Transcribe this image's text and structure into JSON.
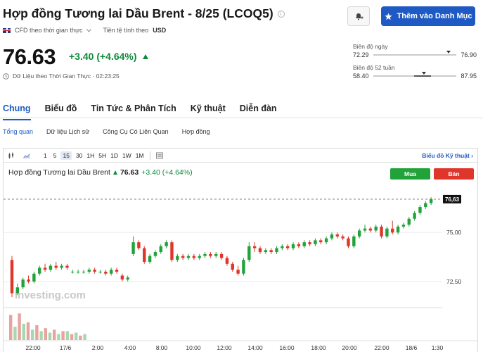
{
  "header": {
    "title": "Hợp đồng Tương lai Dầu Brent - 8/25 (LCOQ5)",
    "watchlist_label": "Thêm vào Danh Mục"
  },
  "meta": {
    "cfd_label": "CFD theo thời gian thực",
    "currency_label": "Tiền tệ tính theo",
    "currency": "USD"
  },
  "quote": {
    "price": "76.63",
    "change": "+3.40 (+4.64%)",
    "status": "Dữ Liệu theo Thời Gian Thực · 02:23:25",
    "change_color": "#0e8a3c"
  },
  "ranges": {
    "day": {
      "label": "Biên độ ngày",
      "low": "72.29",
      "high": "76.90",
      "position": 0.9
    },
    "week52": {
      "label": "Biên độ 52 tuần",
      "low": "58.40",
      "high": "87.95",
      "position": 0.61
    }
  },
  "tabs": [
    "Chung",
    "Biểu đồ",
    "Tin Tức & Phân Tích",
    "Kỹ thuật",
    "Diễn đàn"
  ],
  "subtabs": [
    "Tổng quan",
    "Dữ liệu Lịch sử",
    "Công Cụ Có Liên Quan",
    "Hợp đồng"
  ],
  "toolbar": {
    "intervals": [
      "1",
      "5",
      "15",
      "30",
      "1H",
      "5H",
      "1D",
      "1W",
      "1M"
    ],
    "selected_interval": "15",
    "advanced_chart": "Biểu đồ Kỹ thuật"
  },
  "chart_header": {
    "name": "Hợp đồng Tương lai Dầu Brent",
    "price": "76.63",
    "change": "+3.40 (+4.64%)",
    "buy_label": "Mua",
    "sell_label": "Bán"
  },
  "watermark": "Investing.com",
  "colors": {
    "accent": "#1f5ac4",
    "up": "#22a33a",
    "down": "#e0352b"
  },
  "chart_data": {
    "type": "candlestick",
    "x_ticks": [
      "22:00",
      "17/6",
      "2:00",
      "4:00",
      "8:00",
      "10:00",
      "12:00",
      "14:00",
      "16:00",
      "18:00",
      "20:00",
      "22:00",
      "18/6",
      "1:30"
    ],
    "y_ticks": [
      "75,00",
      "72,50"
    ],
    "last_price_label": "76,63",
    "ylim": [
      71.2,
      77.2
    ],
    "series": [
      {
        "t": 0,
        "o": 73.6,
        "c": 71.9,
        "h": 73.8,
        "l": 71.7
      },
      {
        "t": 1,
        "o": 71.9,
        "c": 72.2,
        "h": 72.4,
        "l": 71.8
      },
      {
        "t": 2,
        "o": 72.2,
        "c": 72.6,
        "h": 72.7,
        "l": 72.1
      },
      {
        "t": 3,
        "o": 72.6,
        "c": 72.5,
        "h": 72.8,
        "l": 72.4
      },
      {
        "t": 4,
        "o": 72.5,
        "c": 72.9,
        "h": 73.0,
        "l": 72.4
      },
      {
        "t": 5,
        "o": 72.9,
        "c": 73.2,
        "h": 73.3,
        "l": 72.8
      },
      {
        "t": 6,
        "o": 73.2,
        "c": 73.1,
        "h": 73.4,
        "l": 73.0
      },
      {
        "t": 7,
        "o": 73.1,
        "c": 73.3,
        "h": 73.4,
        "l": 73.0
      },
      {
        "t": 8,
        "o": 73.3,
        "c": 73.2,
        "h": 73.5,
        "l": 73.1
      },
      {
        "t": 9,
        "o": 73.2,
        "c": 73.3,
        "h": 73.4,
        "l": 73.1
      },
      {
        "t": 10,
        "o": 73.3,
        "c": 73.2,
        "h": 73.4,
        "l": 73.1
      },
      {
        "t": 11,
        "o": 73.0,
        "c": 73.0,
        "h": 73.1,
        "l": 72.9
      },
      {
        "t": 12,
        "o": 73.0,
        "c": 73.0,
        "h": 73.1,
        "l": 72.9
      },
      {
        "t": 13,
        "o": 73.0,
        "c": 73.0,
        "h": 73.1,
        "l": 72.9
      },
      {
        "t": 14,
        "o": 73.0,
        "c": 73.1,
        "h": 73.2,
        "l": 72.9
      },
      {
        "t": 15,
        "o": 73.1,
        "c": 73.0,
        "h": 73.2,
        "l": 72.9
      },
      {
        "t": 16,
        "o": 73.0,
        "c": 73.0,
        "h": 73.1,
        "l": 72.9
      },
      {
        "t": 17,
        "o": 73.0,
        "c": 72.9,
        "h": 73.1,
        "l": 72.8
      },
      {
        "t": 18,
        "o": 72.9,
        "c": 73.1,
        "h": 73.2,
        "l": 72.8
      },
      {
        "t": 19,
        "o": 73.1,
        "c": 73.0,
        "h": 73.2,
        "l": 72.9
      },
      {
        "t": 20,
        "o": 72.8,
        "c": 72.6,
        "h": 72.9,
        "l": 72.5
      },
      {
        "t": 21,
        "o": 72.6,
        "c": 72.7,
        "h": 72.8,
        "l": 72.5
      },
      {
        "t": 22,
        "o": 73.9,
        "c": 74.5,
        "h": 74.8,
        "l": 73.8
      },
      {
        "t": 23,
        "o": 74.5,
        "c": 74.2,
        "h": 74.6,
        "l": 74.1
      },
      {
        "t": 24,
        "o": 74.2,
        "c": 73.5,
        "h": 74.3,
        "l": 73.4
      },
      {
        "t": 25,
        "o": 73.5,
        "c": 73.8,
        "h": 73.9,
        "l": 73.4
      },
      {
        "t": 26,
        "o": 73.8,
        "c": 74.0,
        "h": 74.1,
        "l": 73.7
      },
      {
        "t": 27,
        "o": 74.0,
        "c": 74.3,
        "h": 74.4,
        "l": 73.9
      },
      {
        "t": 28,
        "o": 74.3,
        "c": 74.5,
        "h": 74.6,
        "l": 74.2
      },
      {
        "t": 29,
        "o": 74.5,
        "c": 73.6,
        "h": 74.6,
        "l": 73.5
      },
      {
        "t": 30,
        "o": 73.6,
        "c": 73.8,
        "h": 73.9,
        "l": 73.5
      },
      {
        "t": 31,
        "o": 73.8,
        "c": 73.7,
        "h": 73.9,
        "l": 73.6
      },
      {
        "t": 32,
        "o": 73.7,
        "c": 73.8,
        "h": 73.9,
        "l": 73.6
      },
      {
        "t": 33,
        "o": 73.8,
        "c": 73.7,
        "h": 73.9,
        "l": 73.6
      },
      {
        "t": 34,
        "o": 73.7,
        "c": 73.8,
        "h": 73.9,
        "l": 73.6
      },
      {
        "t": 35,
        "o": 73.8,
        "c": 73.9,
        "h": 74.0,
        "l": 73.7
      },
      {
        "t": 36,
        "o": 73.9,
        "c": 73.8,
        "h": 74.0,
        "l": 73.7
      },
      {
        "t": 37,
        "o": 73.8,
        "c": 73.9,
        "h": 74.0,
        "l": 73.7
      },
      {
        "t": 38,
        "o": 73.9,
        "c": 73.7,
        "h": 74.0,
        "l": 73.6
      },
      {
        "t": 39,
        "o": 73.7,
        "c": 73.4,
        "h": 73.8,
        "l": 73.3
      },
      {
        "t": 40,
        "o": 73.4,
        "c": 73.1,
        "h": 73.5,
        "l": 73.0
      },
      {
        "t": 41,
        "o": 73.1,
        "c": 72.9,
        "h": 73.3,
        "l": 72.8
      },
      {
        "t": 42,
        "o": 72.9,
        "c": 73.6,
        "h": 73.7,
        "l": 72.8
      },
      {
        "t": 43,
        "o": 73.6,
        "c": 74.3,
        "h": 74.5,
        "l": 73.5
      },
      {
        "t": 44,
        "o": 74.3,
        "c": 74.2,
        "h": 74.5,
        "l": 74.0
      },
      {
        "t": 45,
        "o": 74.2,
        "c": 74.0,
        "h": 74.3,
        "l": 73.9
      },
      {
        "t": 46,
        "o": 74.0,
        "c": 74.1,
        "h": 74.2,
        "l": 73.9
      },
      {
        "t": 47,
        "o": 74.1,
        "c": 74.0,
        "h": 74.2,
        "l": 73.9
      },
      {
        "t": 48,
        "o": 74.0,
        "c": 74.2,
        "h": 74.3,
        "l": 73.9
      },
      {
        "t": 49,
        "o": 74.2,
        "c": 74.3,
        "h": 74.4,
        "l": 74.1
      },
      {
        "t": 50,
        "o": 74.3,
        "c": 74.2,
        "h": 74.4,
        "l": 74.1
      },
      {
        "t": 51,
        "o": 74.2,
        "c": 74.4,
        "h": 74.5,
        "l": 74.1
      },
      {
        "t": 52,
        "o": 74.4,
        "c": 74.3,
        "h": 74.5,
        "l": 74.2
      },
      {
        "t": 53,
        "o": 74.3,
        "c": 74.5,
        "h": 74.6,
        "l": 74.2
      },
      {
        "t": 54,
        "o": 74.5,
        "c": 74.4,
        "h": 74.6,
        "l": 74.3
      },
      {
        "t": 55,
        "o": 74.4,
        "c": 74.6,
        "h": 74.7,
        "l": 74.3
      },
      {
        "t": 56,
        "o": 74.6,
        "c": 74.5,
        "h": 74.7,
        "l": 74.4
      },
      {
        "t": 57,
        "o": 74.5,
        "c": 74.7,
        "h": 74.8,
        "l": 74.4
      },
      {
        "t": 58,
        "o": 74.7,
        "c": 74.9,
        "h": 75.0,
        "l": 74.6
      },
      {
        "t": 59,
        "o": 74.9,
        "c": 74.8,
        "h": 75.0,
        "l": 74.7
      },
      {
        "t": 60,
        "o": 74.8,
        "c": 74.7,
        "h": 74.9,
        "l": 74.6
      },
      {
        "t": 61,
        "o": 74.7,
        "c": 74.3,
        "h": 74.8,
        "l": 74.2
      },
      {
        "t": 62,
        "o": 74.3,
        "c": 74.8,
        "h": 74.9,
        "l": 74.2
      },
      {
        "t": 63,
        "o": 74.8,
        "c": 75.1,
        "h": 75.2,
        "l": 74.7
      },
      {
        "t": 64,
        "o": 75.1,
        "c": 75.2,
        "h": 75.4,
        "l": 75.0
      },
      {
        "t": 65,
        "o": 75.2,
        "c": 75.1,
        "h": 75.3,
        "l": 75.0
      },
      {
        "t": 66,
        "o": 75.1,
        "c": 75.3,
        "h": 75.4,
        "l": 75.0
      },
      {
        "t": 67,
        "o": 75.3,
        "c": 74.8,
        "h": 75.4,
        "l": 74.7
      },
      {
        "t": 68,
        "o": 74.8,
        "c": 75.2,
        "h": 75.3,
        "l": 74.7
      },
      {
        "t": 69,
        "o": 75.2,
        "c": 75.0,
        "h": 75.6,
        "l": 74.9
      },
      {
        "t": 70,
        "o": 75.0,
        "c": 75.3,
        "h": 75.4,
        "l": 74.9
      },
      {
        "t": 71,
        "o": 75.3,
        "c": 75.4,
        "h": 75.5,
        "l": 75.2
      },
      {
        "t": 72,
        "o": 75.4,
        "c": 75.7,
        "h": 75.8,
        "l": 75.3
      },
      {
        "t": 73,
        "o": 75.7,
        "c": 76.0,
        "h": 76.1,
        "l": 75.6
      },
      {
        "t": 74,
        "o": 76.0,
        "c": 76.3,
        "h": 76.4,
        "l": 75.9
      },
      {
        "t": 75,
        "o": 76.3,
        "c": 76.5,
        "h": 76.6,
        "l": 76.2
      },
      {
        "t": 76,
        "o": 76.5,
        "c": 76.7,
        "h": 76.8,
        "l": 76.4
      }
    ],
    "volume": [
      0.85,
      0.45,
      0.9,
      0.55,
      0.6,
      0.35,
      0.5,
      0.3,
      0.4,
      0.25,
      0.35,
      0.2,
      0.3,
      0.3,
      0.2,
      0.25,
      0.15,
      0.2
    ]
  }
}
